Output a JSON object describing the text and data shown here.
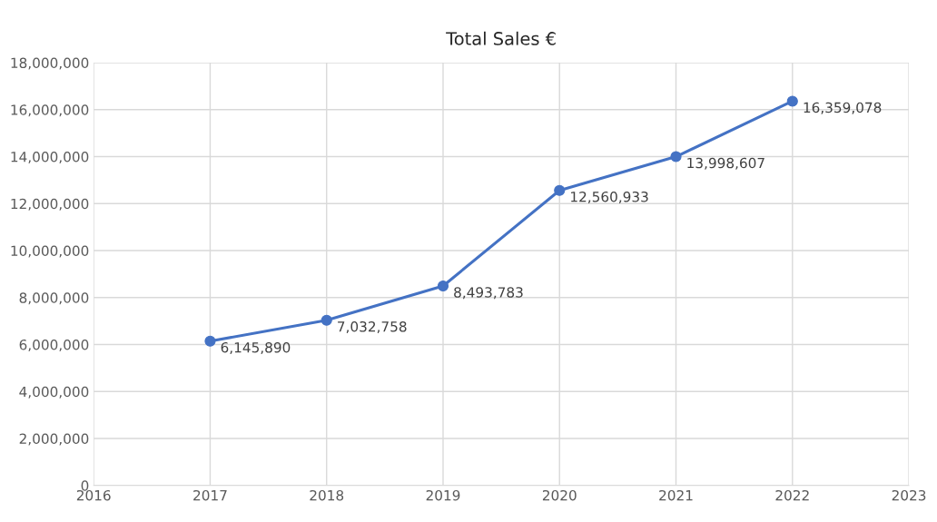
{
  "chart_data": {
    "type": "line",
    "title": "Total Sales €",
    "x": [
      2017,
      2018,
      2019,
      2020,
      2021,
      2022
    ],
    "series": [
      {
        "color": "#4472c4",
        "values": [
          6145890,
          7032758,
          8493783,
          12560933,
          13998607,
          16359078
        ],
        "value_labels": [
          "6,145,890",
          "7,032,758",
          "8,493,783",
          "12,560,933",
          "13,998,607",
          "16,359,078"
        ]
      }
    ],
    "xlim": [
      2016,
      2023
    ],
    "xticks": [
      2016,
      2017,
      2018,
      2019,
      2020,
      2021,
      2022,
      2023
    ],
    "ylim": [
      0,
      18000000
    ],
    "yticks": [
      {
        "value": 0,
        "label": "0"
      },
      {
        "value": 2000000,
        "label": "2,000,000"
      },
      {
        "value": 4000000,
        "label": "4,000,000"
      },
      {
        "value": 6000000,
        "label": "6,000,000"
      },
      {
        "value": 8000000,
        "label": "8,000,000"
      },
      {
        "value": 10000000,
        "label": "10,000,000"
      },
      {
        "value": 12000000,
        "label": "12,000,000"
      },
      {
        "value": 14000000,
        "label": "14,000,000"
      },
      {
        "value": 16000000,
        "label": "16,000,000"
      },
      {
        "value": 18000000,
        "label": "18,000,000"
      }
    ],
    "grid": true,
    "marker": "circle",
    "line_style": "solid"
  }
}
